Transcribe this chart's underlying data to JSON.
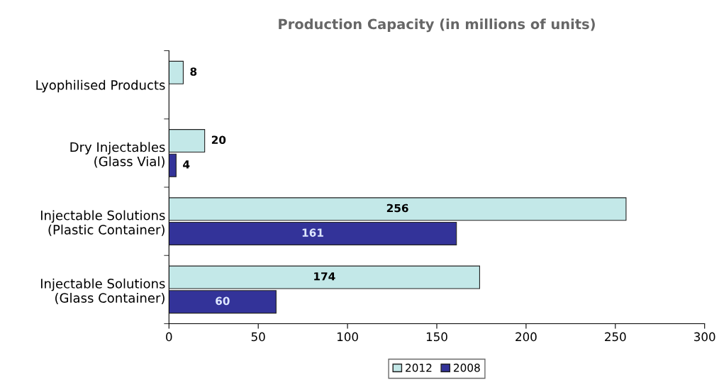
{
  "chart_data": {
    "type": "bar",
    "orientation": "horizontal",
    "title": "Production Capacity (in millions of units)",
    "categories": [
      "Lyophilised Products",
      "Dry Injectables\n(Glass Vial)",
      "Injectable Solutions\n(Plastic Container)",
      "Injectable Solutions\n(Glass Container)"
    ],
    "series": [
      {
        "name": "2012",
        "color": "#c3e8e8",
        "values": [
          8,
          20,
          256,
          174
        ]
      },
      {
        "name": "2008",
        "color": "#333399",
        "values": [
          null,
          4,
          161,
          60
        ]
      }
    ],
    "xlim": [
      0,
      300
    ],
    "xticks": [
      0,
      50,
      100,
      150,
      200,
      250,
      300
    ],
    "data_labels": true,
    "legend": "bottom",
    "grid": false
  }
}
